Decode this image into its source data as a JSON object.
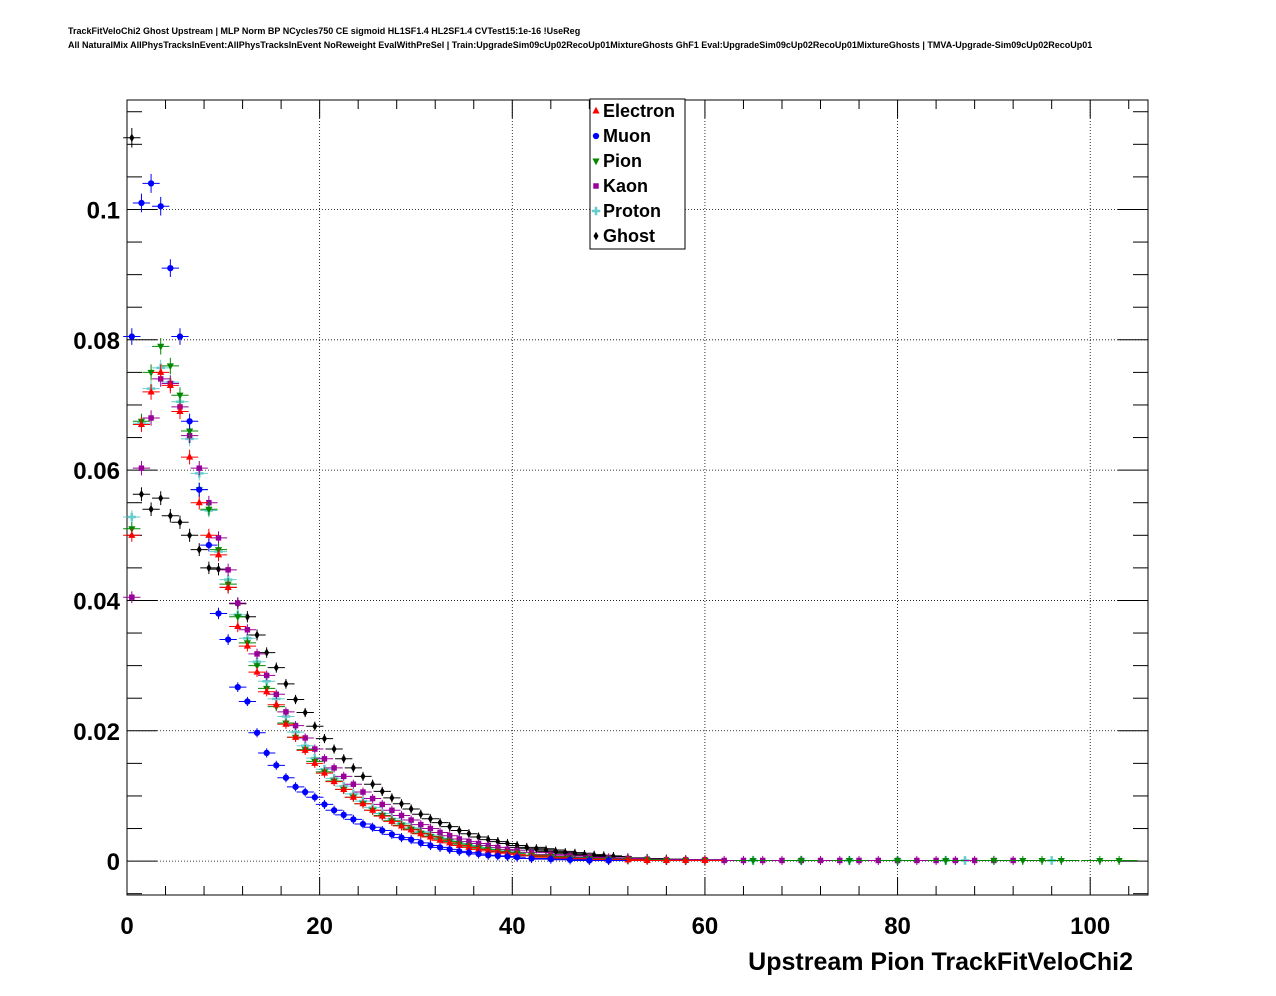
{
  "header": {
    "line1": "TrackFitVeloChi2 Ghost Upstream | MLP Norm BP NCycles750 CE sigmoid HL1SF1.4 HL2SF1.4 CVTest15:1e-16 !UseReg",
    "line2": "All NaturalMix AllPhysTracksInEvent:AllPhysTracksInEvent NoReweight EvalWithPreSel | Train:UpgradeSim09cUp02RecoUp01MixtureGhosts GhF1 Eval:UpgradeSim09cUp02RecoUp01MixtureGhosts | TMVA-Upgrade-Sim09cUp02RecoUp01"
  },
  "chart_data": {
    "type": "scatter",
    "xlabel": "Upstream Pion TrackFitVeloChi2",
    "ylabel": "",
    "xlim": [
      0,
      106
    ],
    "ylim": [
      -0.0052,
      0.1168
    ],
    "x_ticks": [
      0,
      20,
      40,
      60,
      80,
      100
    ],
    "x_tick_labels": [
      "0",
      "20",
      "40",
      "60",
      "80",
      "100"
    ],
    "y_ticks": [
      0,
      0.02,
      0.04,
      0.06,
      0.08,
      0.1
    ],
    "y_tick_labels": [
      "0",
      "0.02",
      "0.04",
      "0.06",
      "0.08",
      "0.1"
    ],
    "grid": true,
    "legend_position": "top-center",
    "series": [
      {
        "name": "Electron",
        "color": "#ff0000",
        "marker": "triangle-up",
        "x": [
          0.5,
          1.5,
          2.5,
          3.5,
          4.5,
          5.5,
          6.5,
          7.5,
          8.5,
          9.5,
          10.5,
          11.5,
          12.5,
          13.5,
          14.5,
          15.5,
          16.5,
          17.5,
          18.5,
          19.5,
          20.5,
          21.5,
          22.5,
          23.5,
          24.5,
          25.5,
          26.5,
          27.5,
          28.5,
          29.5,
          30.5,
          31.5,
          32.5,
          33.5,
          34.5,
          35.5,
          36.5,
          37.5,
          38.5,
          39.5,
          40.5,
          42,
          44,
          46,
          48,
          50,
          52,
          54,
          56,
          58,
          60
        ],
        "y": [
          0.05,
          0.067,
          0.072,
          0.075,
          0.073,
          0.069,
          0.062,
          0.055,
          0.05,
          0.047,
          0.042,
          0.036,
          0.033,
          0.029,
          0.026,
          0.024,
          0.021,
          0.019,
          0.017,
          0.015,
          0.0135,
          0.0122,
          0.011,
          0.0098,
          0.0088,
          0.0078,
          0.0069,
          0.0061,
          0.0054,
          0.0048,
          0.0042,
          0.0037,
          0.0032,
          0.0028,
          0.0024,
          0.0021,
          0.0018,
          0.0016,
          0.0014,
          0.0012,
          0.001,
          0.0008,
          0.0006,
          0.0004,
          0.0003,
          0.0002,
          0.0002,
          0.0001,
          0.0001,
          0.0001,
          0.0001
        ]
      },
      {
        "name": "Muon",
        "color": "#0000ff",
        "marker": "circle",
        "x": [
          0.5,
          1.5,
          2.5,
          3.5,
          4.5,
          5.5,
          6.5,
          7.5,
          8.5,
          9.5,
          10.5,
          11.5,
          12.5,
          13.5,
          14.5,
          15.5,
          16.5,
          17.5,
          18.5,
          19.5,
          20.5,
          21.5,
          22.5,
          23.5,
          24.5,
          25.5,
          26.5,
          27.5,
          28.5,
          29.5,
          30.5,
          31.5,
          32.5,
          33.5,
          34.5,
          35.5,
          36.5,
          37.5,
          38.5,
          39.5,
          40.5,
          42,
          44,
          46,
          48,
          50
        ],
        "y": [
          0.0805,
          0.101,
          0.104,
          0.1005,
          0.091,
          0.0805,
          0.0675,
          0.057,
          0.0485,
          0.038,
          0.034,
          0.0267,
          0.0245,
          0.0197,
          0.0166,
          0.0147,
          0.0128,
          0.0114,
          0.0106,
          0.0098,
          0.0087,
          0.0078,
          0.0071,
          0.0064,
          0.0057,
          0.0052,
          0.0047,
          0.0041,
          0.0036,
          0.0033,
          0.0028,
          0.0024,
          0.0021,
          0.0018,
          0.0015,
          0.0013,
          0.0011,
          0.0009,
          0.0008,
          0.0007,
          0.0006,
          0.0004,
          0.0003,
          0.0002,
          0.0001,
          0.0001
        ]
      },
      {
        "name": "Pion",
        "color": "#008800",
        "marker": "triangle-down",
        "x": [
          0.5,
          1.5,
          2.5,
          3.5,
          4.5,
          5.5,
          6.5,
          7.5,
          8.5,
          9.5,
          10.5,
          11.5,
          12.5,
          13.5,
          14.5,
          15.5,
          16.5,
          17.5,
          18.5,
          19.5,
          20.5,
          21.5,
          22.5,
          23.5,
          24.5,
          25.5,
          26.5,
          27.5,
          28.5,
          29.5,
          30.5,
          31.5,
          32.5,
          33.5,
          34.5,
          35.5,
          36.5,
          37.5,
          38.5,
          39.5,
          40.5,
          42,
          44,
          46,
          48,
          50,
          52,
          54,
          56,
          58,
          60,
          65,
          70,
          75,
          80,
          85,
          90,
          93,
          95,
          97,
          101,
          103
        ],
        "y": [
          0.051,
          0.0675,
          0.075,
          0.079,
          0.076,
          0.0715,
          0.066,
          0.057,
          0.054,
          0.0478,
          0.0425,
          0.0375,
          0.0335,
          0.03,
          0.0265,
          0.0237,
          0.0212,
          0.019,
          0.0171,
          0.0153,
          0.0137,
          0.0123,
          0.011,
          0.0098,
          0.0088,
          0.0078,
          0.007,
          0.0062,
          0.0055,
          0.0049,
          0.0043,
          0.0038,
          0.0034,
          0.003,
          0.0026,
          0.0023,
          0.002,
          0.0018,
          0.0015,
          0.0013,
          0.0012,
          0.0009,
          0.0007,
          0.0005,
          0.0004,
          0.0003,
          0.0002,
          0.0002,
          0.0001,
          0.0001,
          0.0001,
          0.0001,
          0.0001,
          0.0001,
          0.0001,
          0.0001,
          0.0001,
          0.0001,
          0.0001,
          0.0001,
          0.0001,
          0.0001
        ]
      },
      {
        "name": "Kaon",
        "color": "#990099",
        "marker": "square",
        "x": [
          0.5,
          1.5,
          2.5,
          3.5,
          4.5,
          5.5,
          6.5,
          7.5,
          8.5,
          9.5,
          10.5,
          11.5,
          12.5,
          13.5,
          14.5,
          15.5,
          16.5,
          17.5,
          18.5,
          19.5,
          20.5,
          21.5,
          22.5,
          23.5,
          24.5,
          25.5,
          26.5,
          27.5,
          28.5,
          29.5,
          30.5,
          31.5,
          32.5,
          33.5,
          34.5,
          35.5,
          36.5,
          37.5,
          38.5,
          39.5,
          40.5,
          42,
          44,
          46,
          48,
          50,
          52,
          54,
          56,
          58,
          60,
          62,
          64,
          66,
          68,
          70,
          72,
          74,
          76,
          78,
          80,
          82,
          84,
          86,
          88,
          90,
          92
        ],
        "y": [
          0.0405,
          0.0603,
          0.068,
          0.074,
          0.0733,
          0.0697,
          0.0653,
          0.0603,
          0.055,
          0.0496,
          0.0447,
          0.0396,
          0.0355,
          0.0318,
          0.0285,
          0.0256,
          0.0229,
          0.0208,
          0.0189,
          0.0172,
          0.0157,
          0.0143,
          0.013,
          0.0118,
          0.0106,
          0.0096,
          0.0087,
          0.0078,
          0.007,
          0.0063,
          0.0056,
          0.005,
          0.0044,
          0.0039,
          0.0034,
          0.003,
          0.0027,
          0.0024,
          0.0021,
          0.0018,
          0.0016,
          0.0013,
          0.001,
          0.0008,
          0.0006,
          0.0005,
          0.0004,
          0.0003,
          0.0002,
          0.0002,
          0.0002,
          0.0001,
          0.0001,
          0.0001,
          0.0001,
          0.0001,
          0.0001,
          0.0001,
          0.0001,
          0.0001,
          0.0001,
          0.0001,
          0.0001,
          0.0001,
          0.0001,
          0.0001,
          0.0001
        ]
      },
      {
        "name": "Proton",
        "color": "#66cccc",
        "marker": "plus",
        "x": [
          0.5,
          1.5,
          2.5,
          3.5,
          4.5,
          5.5,
          6.5,
          7.5,
          8.5,
          9.5,
          10.5,
          11.5,
          12.5,
          13.5,
          14.5,
          15.5,
          16.5,
          17.5,
          18.5,
          19.5,
          20.5,
          21.5,
          22.5,
          23.5,
          24.5,
          25.5,
          26.5,
          27.5,
          28.5,
          29.5,
          30.5,
          31.5,
          32.5,
          33.5,
          34.5,
          35.5,
          36.5,
          37.5,
          38.5,
          39.5,
          40.5,
          42,
          44,
          46,
          48,
          50,
          52,
          54,
          56,
          58,
          60,
          65,
          70,
          75,
          80,
          85,
          87,
          96
        ],
        "y": [
          0.0528,
          0.0672,
          0.0725,
          0.0757,
          0.0735,
          0.0705,
          0.0648,
          0.0595,
          0.0538,
          0.0475,
          0.0432,
          0.0378,
          0.0342,
          0.0306,
          0.0276,
          0.0249,
          0.0222,
          0.0198,
          0.0177,
          0.0158,
          0.0141,
          0.0127,
          0.0115,
          0.0103,
          0.0092,
          0.0082,
          0.0073,
          0.0065,
          0.0058,
          0.0051,
          0.0045,
          0.004,
          0.0035,
          0.0031,
          0.0027,
          0.0024,
          0.0021,
          0.0018,
          0.0016,
          0.0014,
          0.0012,
          0.0009,
          0.0007,
          0.0005,
          0.0004,
          0.0003,
          0.0002,
          0.0002,
          0.0001,
          0.0001,
          0.0001,
          0.0001,
          0.0001,
          0.0001,
          0.0001,
          0.0001,
          0.0001,
          0.0001
        ]
      },
      {
        "name": "Ghost",
        "color": "#000000",
        "marker": "diamond",
        "x": [
          0.5,
          1.5,
          2.5,
          3.5,
          4.5,
          5.5,
          6.5,
          7.5,
          8.5,
          9.5,
          10.5,
          11.5,
          12.5,
          13.5,
          14.5,
          15.5,
          16.5,
          17.5,
          18.5,
          19.5,
          20.5,
          21.5,
          22.5,
          23.5,
          24.5,
          25.5,
          26.5,
          27.5,
          28.5,
          29.5,
          30.5,
          31.5,
          32.5,
          33.5,
          34.5,
          35.5,
          36.5,
          37.5,
          38.5,
          39.5,
          40.5,
          41.5,
          42.5,
          43.5,
          44.5,
          45.5,
          46.5,
          47.5,
          48.5,
          49.5,
          50.5,
          52,
          54,
          56,
          58,
          60
        ],
        "y": [
          0.111,
          0.0563,
          0.054,
          0.0557,
          0.053,
          0.052,
          0.05,
          0.0478,
          0.045,
          0.0448,
          0.042,
          0.0395,
          0.0375,
          0.0347,
          0.032,
          0.0297,
          0.0272,
          0.0248,
          0.0228,
          0.0207,
          0.0188,
          0.0172,
          0.0157,
          0.0143,
          0.013,
          0.0118,
          0.0107,
          0.0097,
          0.0088,
          0.008,
          0.0072,
          0.0065,
          0.0059,
          0.0053,
          0.0047,
          0.0042,
          0.0037,
          0.0033,
          0.003,
          0.0027,
          0.0024,
          0.0021,
          0.0019,
          0.0017,
          0.0015,
          0.0013,
          0.0012,
          0.001,
          0.0009,
          0.0008,
          0.0007,
          0.0005,
          0.0004,
          0.0003,
          0.0002,
          0.0002
        ]
      }
    ]
  }
}
